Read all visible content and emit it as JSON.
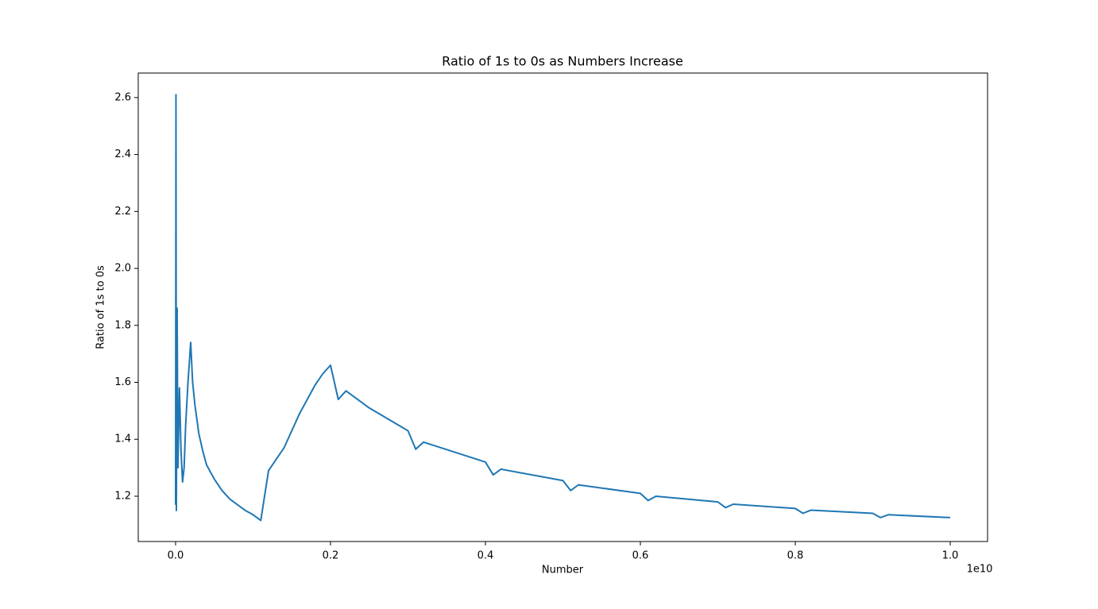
{
  "chart_data": {
    "type": "line",
    "title": "Ratio of 1s to 0s as Numbers Increase",
    "x_label": "Number",
    "y_label": "Ratio of 1s to 0s",
    "x_offset_label": "1e10",
    "color": "#1f77b4",
    "grid": false,
    "x": [
      0,
      0.0005,
      0.001,
      0.002,
      0.003,
      0.005,
      0.007,
      0.009,
      0.011,
      0.013,
      0.016,
      0.0195,
      0.022,
      0.025,
      0.03,
      0.035,
      0.04,
      0.05,
      0.06,
      0.07,
      0.08,
      0.09,
      0.1,
      0.11,
      0.12,
      0.13,
      0.14,
      0.15,
      0.16,
      0.17,
      0.18,
      0.19,
      0.2,
      0.21,
      0.22,
      0.25,
      0.3,
      0.31,
      0.32,
      0.4,
      0.41,
      0.42,
      0.5,
      0.51,
      0.52,
      0.6,
      0.61,
      0.62,
      0.7,
      0.71,
      0.72,
      0.8,
      0.81,
      0.82,
      0.9,
      0.91,
      0.92,
      1.0
    ],
    "values": [
      1.17,
      2.61,
      1.15,
      1.86,
      1.3,
      1.58,
      1.36,
      1.25,
      1.3,
      1.45,
      1.6,
      1.74,
      1.6,
      1.52,
      1.42,
      1.36,
      1.31,
      1.26,
      1.22,
      1.19,
      1.17,
      1.15,
      1.135,
      1.115,
      1.29,
      1.33,
      1.37,
      1.43,
      1.49,
      1.54,
      1.59,
      1.63,
      1.66,
      1.54,
      1.57,
      1.51,
      1.43,
      1.365,
      1.39,
      1.32,
      1.275,
      1.295,
      1.255,
      1.22,
      1.24,
      1.21,
      1.185,
      1.2,
      1.18,
      1.16,
      1.172,
      1.157,
      1.14,
      1.151,
      1.14,
      1.125,
      1.135,
      1.125
    ],
    "xlim": [
      -0.0482,
      1.0482
    ],
    "ylim": [
      1.041,
      2.686
    ],
    "xticks": [
      {
        "value": 0,
        "label": "0.0"
      },
      0.2,
      0.4,
      0.6,
      0.8,
      {
        "value": 1,
        "label": "1.0"
      }
    ],
    "yticks": [
      1.2,
      1.4,
      1.6,
      1.8,
      {
        "value": 2,
        "label": "2.0"
      },
      2.2,
      2.4,
      2.6
    ]
  }
}
